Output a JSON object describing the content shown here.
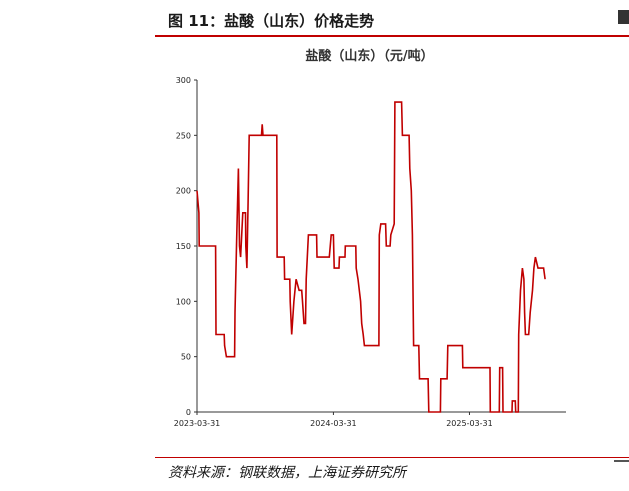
{
  "header": {
    "figure_title": "图 11：盐酸（山东）价格走势"
  },
  "footer": {
    "source": "资料来源：钢联数据，上海证券研究所"
  },
  "chart_data": {
    "type": "line",
    "title": "盐酸（山东）（元/吨）",
    "xlabel": "",
    "ylabel": "",
    "ylim": [
      0,
      300
    ],
    "y_ticks": [
      "0",
      "50",
      "100",
      "150",
      "200",
      "250",
      "300"
    ],
    "x_ticks": [
      "2023-03-31",
      "2024-03-31",
      "2025-03-31"
    ],
    "x_range": [
      "2023-03-31",
      "2025-12-15"
    ],
    "grid": false,
    "colors": {
      "line": "#c00000"
    },
    "series": [
      {
        "points": [
          [
            "2023-03-31",
            200
          ],
          [
            "2023-04-05",
            180
          ],
          [
            "2023-04-06",
            150
          ],
          [
            "2023-05-20",
            150
          ],
          [
            "2023-05-21",
            70
          ],
          [
            "2023-06-12",
            70
          ],
          [
            "2023-06-13",
            60
          ],
          [
            "2023-06-18",
            50
          ],
          [
            "2023-07-10",
            50
          ],
          [
            "2023-07-11",
            90
          ],
          [
            "2023-07-15",
            150
          ],
          [
            "2023-07-20",
            220
          ],
          [
            "2023-07-23",
            150
          ],
          [
            "2023-07-26",
            140
          ],
          [
            "2023-07-29",
            160
          ],
          [
            "2023-08-01",
            180
          ],
          [
            "2023-08-08",
            180
          ],
          [
            "2023-08-09",
            150
          ],
          [
            "2023-08-12",
            130
          ],
          [
            "2023-08-15",
            190
          ],
          [
            "2023-08-18",
            250
          ],
          [
            "2023-09-20",
            250
          ],
          [
            "2023-09-22",
            260
          ],
          [
            "2023-09-24",
            250
          ],
          [
            "2023-10-31",
            250
          ],
          [
            "2023-11-01",
            140
          ],
          [
            "2023-11-20",
            140
          ],
          [
            "2023-11-21",
            120
          ],
          [
            "2023-12-05",
            120
          ],
          [
            "2023-12-06",
            100
          ],
          [
            "2023-12-10",
            70
          ],
          [
            "2023-12-16",
            100
          ],
          [
            "2023-12-22",
            120
          ],
          [
            "2023-12-30",
            110
          ],
          [
            "2024-01-06",
            110
          ],
          [
            "2024-01-08",
            100
          ],
          [
            "2024-01-12",
            80
          ],
          [
            "2024-01-16",
            80
          ],
          [
            "2024-01-18",
            120
          ],
          [
            "2024-01-24",
            160
          ],
          [
            "2024-02-15",
            160
          ],
          [
            "2024-02-16",
            140
          ],
          [
            "2024-03-20",
            140
          ],
          [
            "2024-03-25",
            160
          ],
          [
            "2024-03-31",
            160
          ],
          [
            "2024-04-02",
            130
          ],
          [
            "2024-04-15",
            130
          ],
          [
            "2024-04-16",
            140
          ],
          [
            "2024-05-01",
            140
          ],
          [
            "2024-05-02",
            150
          ],
          [
            "2024-05-30",
            150
          ],
          [
            "2024-05-31",
            130
          ],
          [
            "2024-06-05",
            120
          ],
          [
            "2024-06-12",
            100
          ],
          [
            "2024-06-15",
            80
          ],
          [
            "2024-06-19",
            70
          ],
          [
            "2024-06-22",
            60
          ],
          [
            "2024-07-31",
            60
          ],
          [
            "2024-08-01",
            160
          ],
          [
            "2024-08-05",
            170
          ],
          [
            "2024-08-18",
            170
          ],
          [
            "2024-08-20",
            150
          ],
          [
            "2024-08-30",
            150
          ],
          [
            "2024-09-01",
            160
          ],
          [
            "2024-09-10",
            170
          ],
          [
            "2024-09-12",
            280
          ],
          [
            "2024-09-30",
            280
          ],
          [
            "2024-10-02",
            250
          ],
          [
            "2024-10-20",
            250
          ],
          [
            "2024-10-22",
            220
          ],
          [
            "2024-10-26",
            200
          ],
          [
            "2024-10-29",
            160
          ],
          [
            "2024-11-01",
            60
          ],
          [
            "2024-11-15",
            60
          ],
          [
            "2024-11-17",
            30
          ],
          [
            "2024-12-10",
            30
          ],
          [
            "2024-12-12",
            0
          ],
          [
            "2025-01-12",
            0
          ],
          [
            "2025-01-13",
            30
          ],
          [
            "2025-01-30",
            30
          ],
          [
            "2025-02-01",
            60
          ],
          [
            "2025-03-12",
            60
          ],
          [
            "2025-03-13",
            40
          ],
          [
            "2025-05-25",
            40
          ],
          [
            "2025-05-26",
            0
          ],
          [
            "2025-06-19",
            0
          ],
          [
            "2025-06-20",
            40
          ],
          [
            "2025-06-28",
            40
          ],
          [
            "2025-06-29",
            0
          ],
          [
            "2025-07-23",
            0
          ],
          [
            "2025-07-24",
            10
          ],
          [
            "2025-08-01",
            10
          ],
          [
            "2025-08-02",
            0
          ],
          [
            "2025-08-09",
            0
          ],
          [
            "2025-08-10",
            70
          ],
          [
            "2025-08-15",
            110
          ],
          [
            "2025-08-20",
            130
          ],
          [
            "2025-08-24",
            120
          ],
          [
            "2025-08-26",
            90
          ],
          [
            "2025-08-28",
            70
          ],
          [
            "2025-09-06",
            70
          ],
          [
            "2025-09-10",
            90
          ],
          [
            "2025-09-16",
            110
          ],
          [
            "2025-09-20",
            130
          ],
          [
            "2025-09-24",
            140
          ],
          [
            "2025-10-01",
            130
          ],
          [
            "2025-10-10",
            130
          ],
          [
            "2025-10-16",
            130
          ],
          [
            "2025-10-20",
            120
          ]
        ]
      }
    ]
  }
}
